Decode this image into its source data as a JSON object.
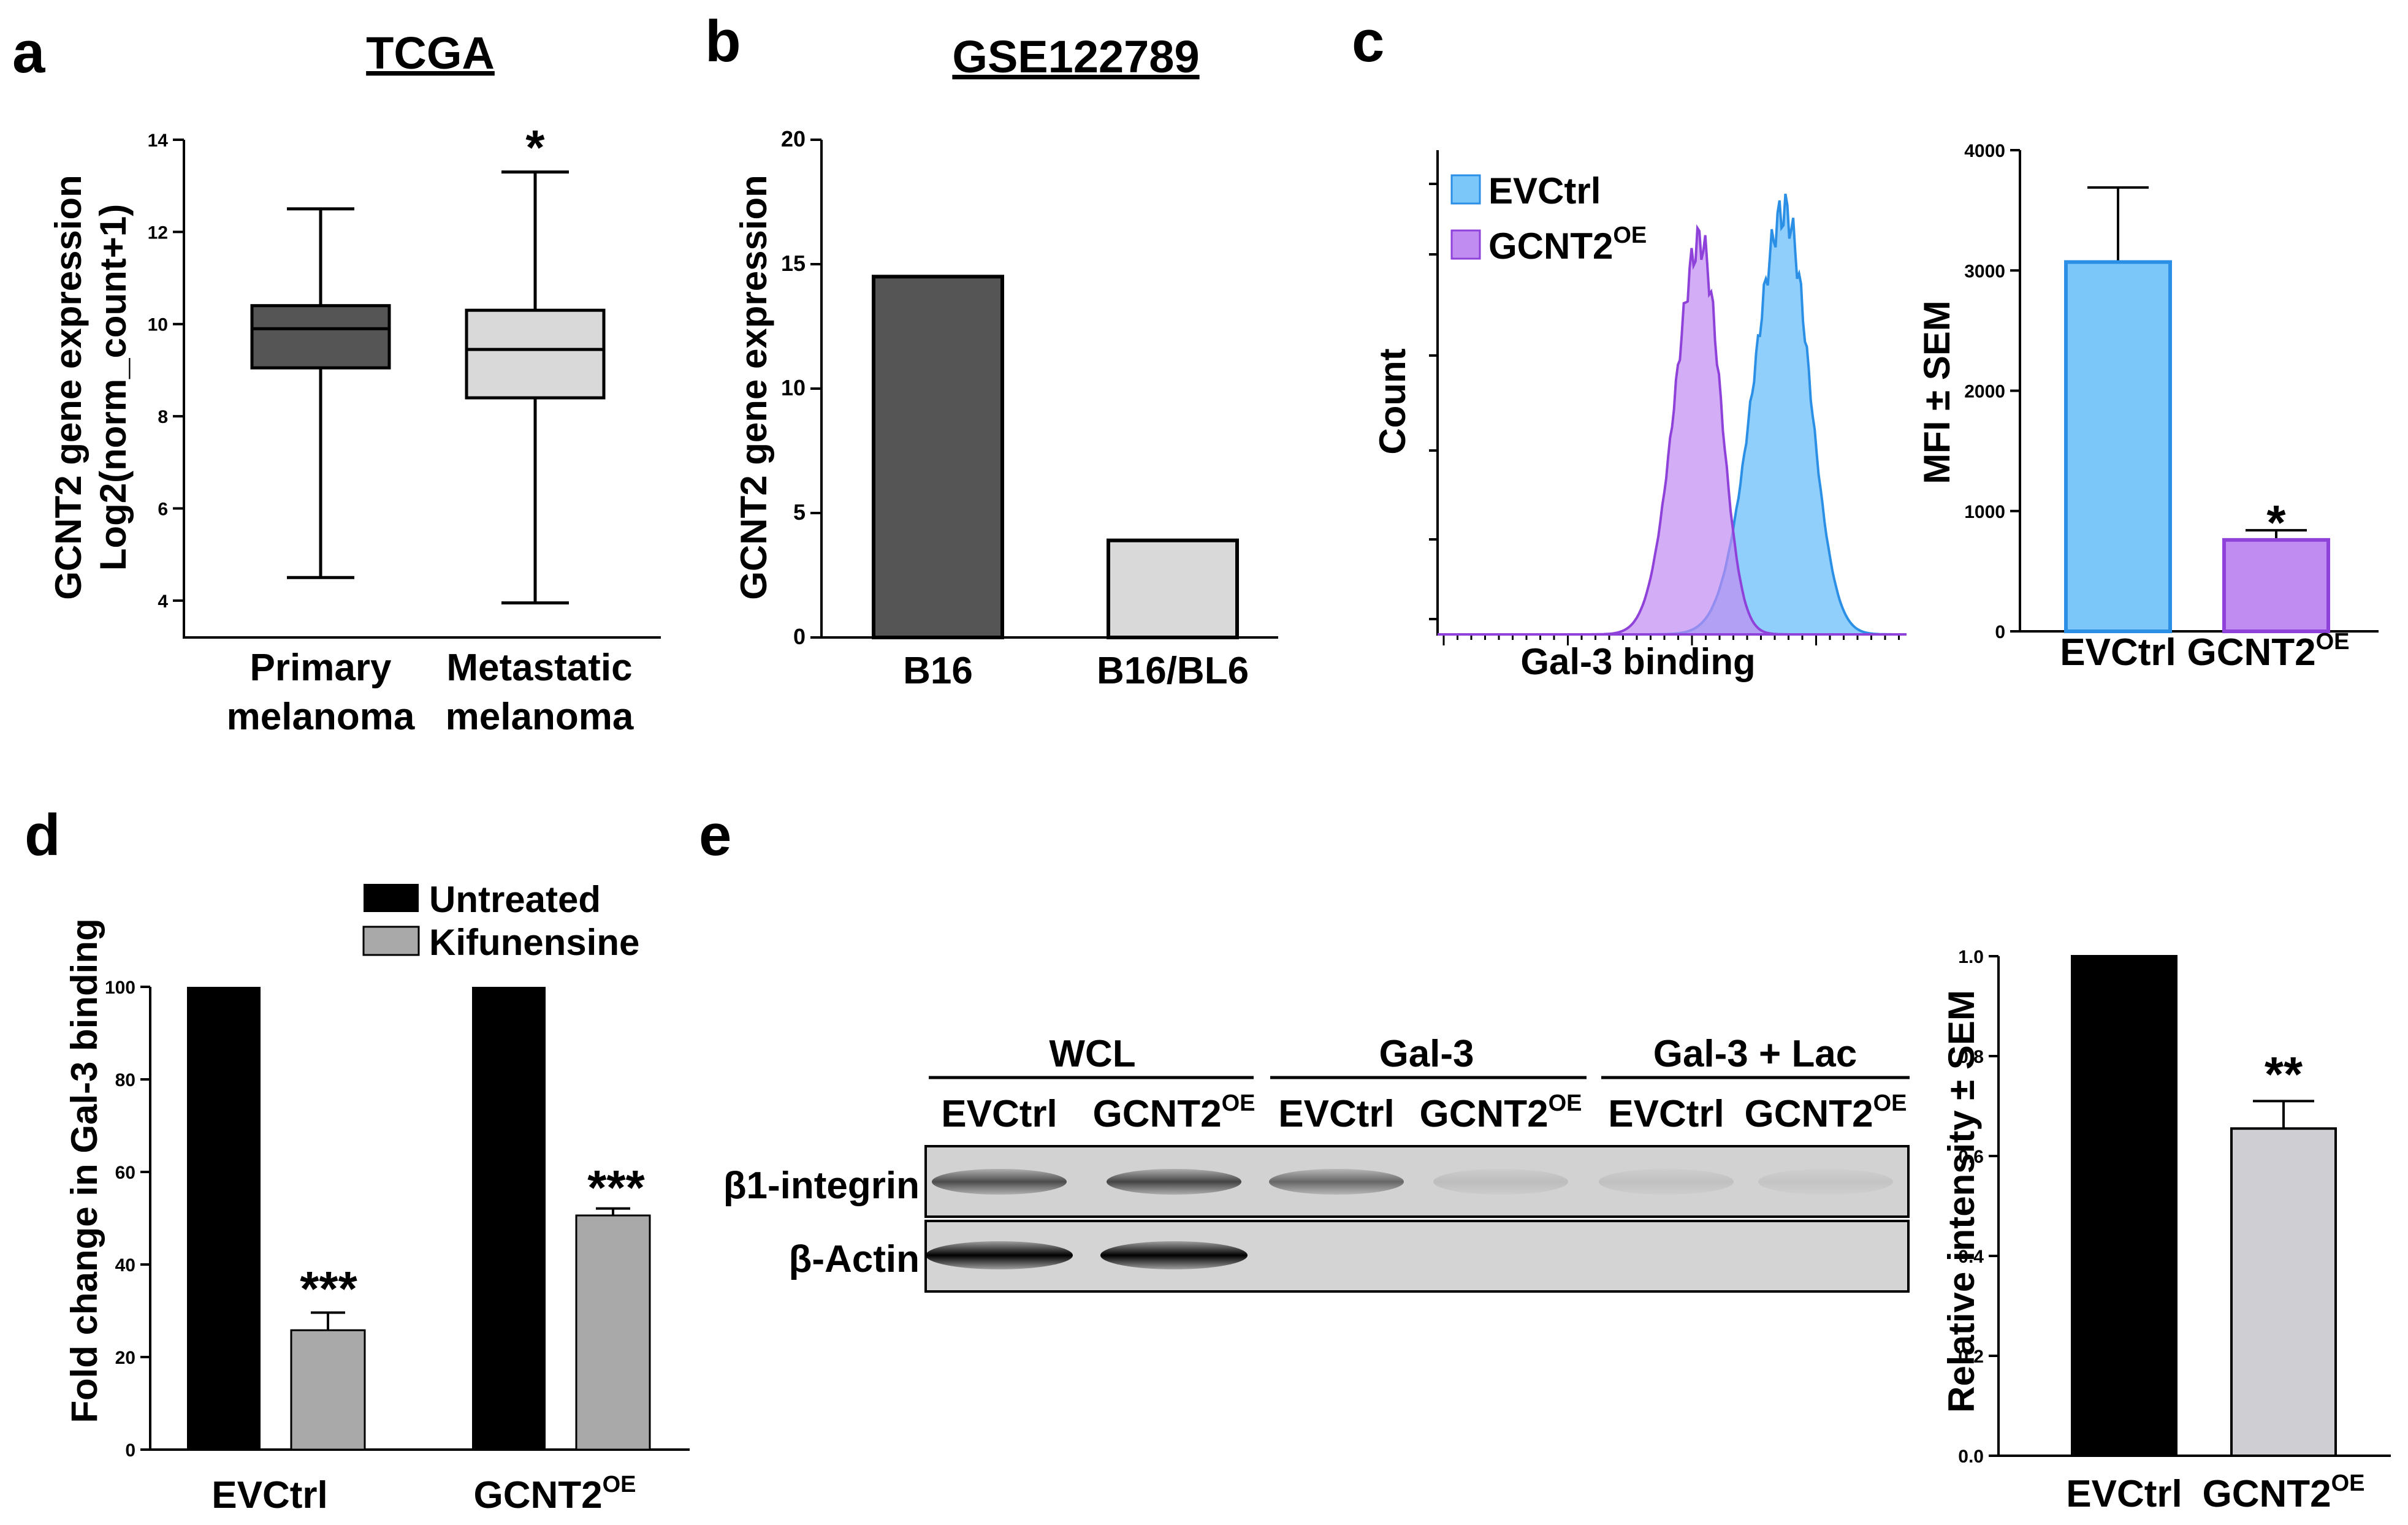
{
  "panels": {
    "a": "a",
    "b": "b",
    "c": "c",
    "d": "d",
    "e": "e"
  },
  "colors": {
    "dark_gray": "#555555",
    "light_gray": "#d9d9d9",
    "black": "#000000",
    "evctrl_blue": "#7cc7fa",
    "evctrl_blue_edge": "#2b8fe6",
    "gcnt2_purple": "#c08cf2",
    "gcnt2_purple_edge": "#8f42d9",
    "kif_gray": "#a9a9a9",
    "bar_e_gray": "#cfcfd3"
  },
  "chart_data": [
    {
      "id": "a",
      "type": "box",
      "title": "TCGA",
      "ylabel": "GCNT2 gene expression",
      "ylabel2": "Log2(norm_count+1)",
      "ylim": [
        3.2,
        14
      ],
      "yticks": [
        "4",
        "6",
        "8",
        "10",
        "12",
        "14"
      ],
      "categories": [
        {
          "line1": "Primary",
          "line2": "melanoma",
          "min": 4.5,
          "q1": 9.05,
          "median": 9.9,
          "q3": 10.4,
          "max": 12.5,
          "color": "dark_gray",
          "annotation": ""
        },
        {
          "line1": "Metastatic",
          "line2": "melanoma",
          "min": 3.95,
          "q1": 8.4,
          "median": 9.45,
          "q3": 10.3,
          "max": 13.3,
          "color": "light_gray",
          "annotation": "*"
        }
      ]
    },
    {
      "id": "b",
      "type": "bar",
      "title": "GSE122789",
      "ylabel": "GCNT2 gene expression",
      "ylim": [
        0,
        20
      ],
      "yticks": [
        "0",
        "5",
        "10",
        "15",
        "20"
      ],
      "categories": [
        "B16",
        "B16/BL6"
      ],
      "values": [
        14.5,
        3.9
      ],
      "colors": [
        "dark_gray",
        "light_gray"
      ]
    },
    {
      "id": "c1",
      "type": "histogram",
      "xlabel": "Gal-3 binding",
      "ylabel": "Count",
      "legend": [
        {
          "name": "EVCtrl",
          "sup": "",
          "color": "evctrl_blue"
        },
        {
          "name": "GCNT2",
          "sup": "OE",
          "color": "gcnt2_purple"
        }
      ],
      "series": [
        {
          "name": "EVCtrl",
          "peak_x": 3.7,
          "peak_height": 1.0,
          "width": 0.55,
          "color": "evctrl_blue"
        },
        {
          "name": "GCNT2OE",
          "peak_x": 2.8,
          "peak_height": 0.93,
          "width": 0.45,
          "color": "gcnt2_purple"
        }
      ],
      "xlim": [
        0,
        5
      ]
    },
    {
      "id": "c2",
      "type": "bar",
      "ylabel": "MFI ± SEM",
      "ylim": [
        0,
        4000
      ],
      "yticks": [
        "0",
        "1000",
        "2000",
        "3000",
        "4000"
      ],
      "categories": [
        {
          "label": "EVCtrl",
          "sup": ""
        },
        {
          "label": "GCNT2",
          "sup": "OE"
        }
      ],
      "values": [
        3070,
        760
      ],
      "errors": [
        620,
        80
      ],
      "annotations": [
        "",
        "*"
      ],
      "colors": [
        "evctrl_blue",
        "gcnt2_purple"
      ]
    },
    {
      "id": "d",
      "type": "bar",
      "ylabel": "Fold change in Gal-3 binding",
      "ylim": [
        0,
        100
      ],
      "yticks": [
        "0",
        "20",
        "40",
        "60",
        "80",
        "100"
      ],
      "legend": [
        {
          "name": "Untreated",
          "color": "black"
        },
        {
          "name": "Kifunensine",
          "color": "kif_gray"
        }
      ],
      "groups": [
        {
          "label": "EVCtrl",
          "sup": ""
        },
        {
          "label": "GCNT2",
          "sup": "OE"
        }
      ],
      "series": [
        {
          "name": "Untreated",
          "values": [
            100,
            100
          ],
          "errors": [
            0,
            0
          ],
          "color": "black"
        },
        {
          "name": "Kifunensine",
          "values": [
            25.8,
            50.6
          ],
          "errors": [
            3.8,
            1.5
          ],
          "color": "kif_gray"
        }
      ],
      "annotations": [
        "***",
        "***"
      ]
    },
    {
      "id": "e",
      "type": "bar",
      "ylabel": "Relative intensity ± SEM",
      "ylim": [
        0,
        1.0
      ],
      "yticks": [
        "0.0",
        "0.2",
        "0.4",
        "0.6",
        "0.8",
        "1.0"
      ],
      "categories": [
        {
          "label": "EVCtrl",
          "sup": ""
        },
        {
          "label": "GCNT2",
          "sup": "OE"
        }
      ],
      "values": [
        1.0,
        0.655
      ],
      "errors": [
        0,
        0.055
      ],
      "annotations": [
        "",
        "**"
      ],
      "colors": [
        "black",
        "bar_e_gray"
      ]
    }
  ],
  "blot": {
    "groups": [
      "WCL",
      "Gal-3",
      "Gal-3 + Lac"
    ],
    "lanes": [
      {
        "label": "EVCtrl",
        "sup": ""
      },
      {
        "label": "GCNT2",
        "sup": "OE"
      },
      {
        "label": "EVCtrl",
        "sup": ""
      },
      {
        "label": "GCNT2",
        "sup": "OE"
      },
      {
        "label": "EVCtrl",
        "sup": ""
      },
      {
        "label": "GCNT2",
        "sup": "OE"
      }
    ],
    "rows": [
      {
        "label": "β1-integrin",
        "intensities": [
          0.75,
          0.8,
          0.6,
          0.12,
          0.1,
          0.08
        ]
      },
      {
        "label": "β-Actin",
        "intensities": [
          1.0,
          1.0,
          0.0,
          0.0,
          0.0,
          0.0
        ]
      }
    ]
  }
}
